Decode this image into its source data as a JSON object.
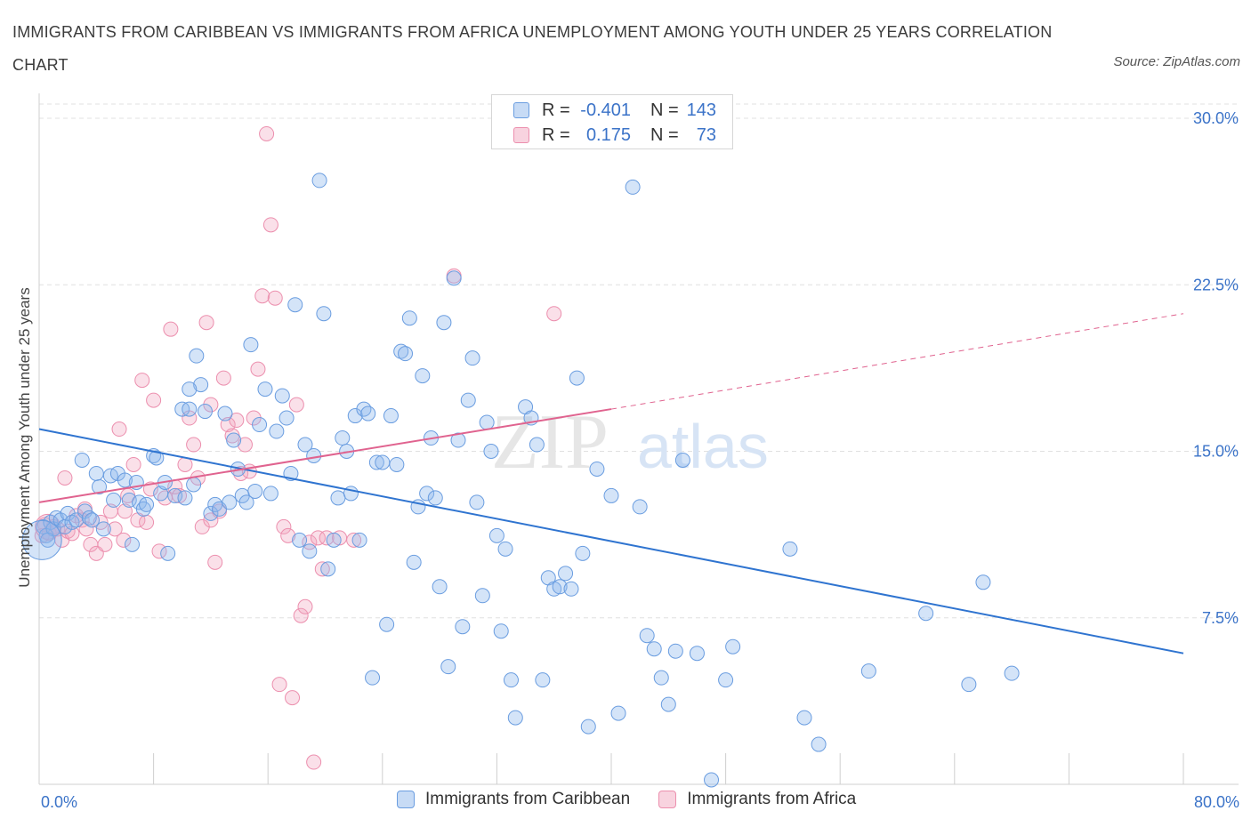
{
  "title": "IMMIGRANTS FROM CARIBBEAN VS IMMIGRANTS FROM AFRICA UNEMPLOYMENT AMONG YOUTH UNDER 25 YEARS CORRELATION CHART",
  "source": "Source: ZipAtlas.com",
  "watermark": {
    "zip": "ZIP",
    "atlas": "atlas"
  },
  "legend_top": {
    "rows": [
      {
        "r_label": "R =",
        "r_value": "-0.401",
        "n_label": "N =",
        "n_value": "143",
        "color": "#8fb8ec"
      },
      {
        "r_label": "R =",
        "r_value": "0.175",
        "n_label": "N =",
        "n_value": "73",
        "color": "#f2a7c0"
      }
    ]
  },
  "legend_bottom": [
    {
      "label": "Immigrants from Caribbean",
      "color": "#8fb8ec"
    },
    {
      "label": "Immigrants from Africa",
      "color": "#f2a7c0"
    }
  ],
  "colors": {
    "caribbean_fill": "rgba(143,184,236,0.38)",
    "caribbean_stroke": "#6a9de0",
    "africa_fill": "rgba(242,167,192,0.35)",
    "africa_stroke": "#ec8fae",
    "caribbean_line": "#2f74d0",
    "africa_line": "#e0638f",
    "tick_text": "#3b73c8",
    "grid": "#e0e0e0"
  },
  "chart_data": {
    "type": "scatter",
    "title": "IMMIGRANTS FROM CARIBBEAN VS IMMIGRANTS FROM AFRICA UNEMPLOYMENT AMONG YOUTH UNDER 25 YEARS CORRELATION CHART",
    "xlabel": "",
    "ylabel": "Unemployment Among Youth under 25 years",
    "xlim": [
      0,
      80
    ],
    "ylim": [
      0,
      30
    ],
    "x_tick_labels": [
      {
        "value": 0,
        "label": "0.0%"
      },
      {
        "value": 80,
        "label": "80.0%"
      }
    ],
    "y_tick_labels": [
      {
        "value": 7.5,
        "label": "7.5%"
      },
      {
        "value": 15,
        "label": "15.0%"
      },
      {
        "value": 22.5,
        "label": "22.5%"
      },
      {
        "value": 30,
        "label": "30.0%"
      }
    ],
    "series": [
      {
        "name": "Immigrants from Caribbean",
        "r": -0.401,
        "n": 143,
        "trend": {
          "x": [
            0,
            80
          ],
          "y": [
            16.0,
            5.9
          ]
        },
        "points": [
          [
            0.3,
            11.6
          ],
          [
            0.5,
            11.2
          ],
          [
            0.8,
            11.8
          ],
          [
            1.0,
            11.5
          ],
          [
            1.2,
            12.0
          ],
          [
            1.5,
            11.9
          ],
          [
            1.8,
            11.6
          ],
          [
            2.0,
            12.2
          ],
          [
            2.3,
            11.8
          ],
          [
            2.6,
            11.9
          ],
          [
            3.0,
            14.6
          ],
          [
            3.2,
            12.3
          ],
          [
            3.5,
            12.0
          ],
          [
            3.7,
            11.9
          ],
          [
            4.0,
            14.0
          ],
          [
            4.2,
            13.4
          ],
          [
            4.5,
            11.5
          ],
          [
            5.0,
            13.9
          ],
          [
            5.2,
            12.8
          ],
          [
            5.5,
            14.0
          ],
          [
            6.0,
            13.7
          ],
          [
            6.3,
            12.8
          ],
          [
            6.8,
            13.6
          ],
          [
            7.0,
            12.7
          ],
          [
            7.3,
            12.4
          ],
          [
            7.5,
            12.6
          ],
          [
            8.0,
            14.8
          ],
          [
            8.2,
            14.7
          ],
          [
            8.5,
            13.1
          ],
          [
            8.8,
            13.6
          ],
          [
            9.0,
            10.4
          ],
          [
            9.5,
            13.0
          ],
          [
            10.0,
            16.9
          ],
          [
            10.2,
            12.9
          ],
          [
            10.5,
            16.9
          ],
          [
            10.8,
            13.5
          ],
          [
            11.0,
            19.3
          ],
          [
            11.3,
            18.0
          ],
          [
            11.6,
            16.8
          ],
          [
            12.0,
            12.2
          ],
          [
            12.3,
            12.6
          ],
          [
            12.6,
            12.4
          ],
          [
            13.0,
            16.7
          ],
          [
            13.3,
            12.7
          ],
          [
            13.6,
            15.5
          ],
          [
            13.9,
            14.2
          ],
          [
            14.2,
            13.0
          ],
          [
            14.5,
            12.7
          ],
          [
            14.8,
            19.8
          ],
          [
            15.1,
            13.2
          ],
          [
            15.4,
            16.2
          ],
          [
            15.8,
            17.8
          ],
          [
            16.2,
            13.1
          ],
          [
            16.6,
            15.9
          ],
          [
            17.0,
            17.5
          ],
          [
            17.3,
            16.5
          ],
          [
            17.6,
            14.0
          ],
          [
            17.9,
            21.6
          ],
          [
            18.2,
            11.0
          ],
          [
            18.6,
            15.3
          ],
          [
            18.9,
            10.5
          ],
          [
            19.2,
            14.8
          ],
          [
            19.6,
            27.2
          ],
          [
            19.9,
            21.2
          ],
          [
            20.2,
            9.7
          ],
          [
            20.6,
            11.0
          ],
          [
            20.9,
            12.9
          ],
          [
            21.2,
            15.6
          ],
          [
            21.5,
            15.0
          ],
          [
            21.8,
            13.1
          ],
          [
            22.1,
            16.6
          ],
          [
            22.4,
            11.0
          ],
          [
            22.7,
            16.9
          ],
          [
            23.0,
            16.7
          ],
          [
            23.3,
            4.8
          ],
          [
            23.6,
            14.5
          ],
          [
            24.0,
            14.5
          ],
          [
            24.3,
            7.2
          ],
          [
            24.6,
            16.6
          ],
          [
            25.0,
            14.4
          ],
          [
            25.3,
            19.5
          ],
          [
            25.6,
            19.4
          ],
          [
            25.9,
            21.0
          ],
          [
            26.2,
            10.0
          ],
          [
            26.5,
            12.5
          ],
          [
            26.8,
            18.4
          ],
          [
            27.1,
            13.1
          ],
          [
            27.4,
            15.6
          ],
          [
            27.7,
            12.9
          ],
          [
            28.0,
            8.9
          ],
          [
            28.3,
            20.8
          ],
          [
            28.6,
            5.3
          ],
          [
            29.0,
            22.8
          ],
          [
            29.3,
            15.5
          ],
          [
            29.6,
            7.1
          ],
          [
            30.0,
            17.3
          ],
          [
            30.3,
            19.2
          ],
          [
            30.6,
            12.7
          ],
          [
            31.0,
            8.5
          ],
          [
            31.3,
            16.3
          ],
          [
            31.6,
            15.0
          ],
          [
            32.0,
            11.2
          ],
          [
            32.3,
            6.9
          ],
          [
            32.6,
            10.6
          ],
          [
            33.0,
            4.7
          ],
          [
            33.3,
            3.0
          ],
          [
            34.0,
            17.0
          ],
          [
            34.4,
            16.5
          ],
          [
            34.8,
            15.3
          ],
          [
            35.2,
            4.7
          ],
          [
            35.6,
            9.3
          ],
          [
            36.0,
            8.8
          ],
          [
            36.4,
            8.9
          ],
          [
            36.8,
            9.5
          ],
          [
            37.2,
            8.8
          ],
          [
            37.6,
            18.3
          ],
          [
            38.0,
            10.4
          ],
          [
            38.4,
            2.6
          ],
          [
            39.0,
            14.2
          ],
          [
            40.0,
            13.0
          ],
          [
            40.5,
            3.2
          ],
          [
            41.5,
            26.9
          ],
          [
            42.0,
            12.5
          ],
          [
            42.5,
            6.7
          ],
          [
            43.0,
            6.1
          ],
          [
            43.5,
            4.8
          ],
          [
            44.0,
            3.6
          ],
          [
            44.5,
            6.0
          ],
          [
            45.0,
            14.6
          ],
          [
            46.0,
            5.9
          ],
          [
            48.0,
            4.7
          ],
          [
            48.5,
            6.2
          ],
          [
            52.5,
            10.6
          ],
          [
            53.5,
            3.0
          ],
          [
            54.5,
            1.8
          ],
          [
            58.0,
            5.1
          ],
          [
            62.0,
            7.7
          ],
          [
            65.0,
            4.5
          ],
          [
            66.0,
            9.1
          ],
          [
            68.0,
            5.0
          ],
          [
            10.5,
            17.8
          ],
          [
            0.6,
            11.0
          ],
          [
            6.5,
            10.8
          ],
          [
            47.0,
            0.2
          ]
        ]
      },
      {
        "name": "Immigrants from Africa",
        "r": 0.175,
        "n": 73,
        "trend": {
          "x": [
            0,
            40
          ],
          "y": [
            12.7,
            16.9
          ],
          "dashed_extension": {
            "x": [
              40,
              80
            ],
            "y": [
              16.9,
              21.2
            ]
          }
        },
        "points": [
          [
            0.2,
            11.2
          ],
          [
            0.4,
            11.7
          ],
          [
            0.7,
            11.3
          ],
          [
            1.0,
            11.6
          ],
          [
            1.3,
            11.5
          ],
          [
            1.6,
            11.0
          ],
          [
            1.8,
            13.8
          ],
          [
            2.0,
            11.4
          ],
          [
            2.3,
            11.3
          ],
          [
            2.6,
            12.1
          ],
          [
            3.0,
            11.9
          ],
          [
            3.3,
            11.5
          ],
          [
            3.6,
            10.8
          ],
          [
            4.0,
            10.4
          ],
          [
            4.3,
            11.8
          ],
          [
            4.6,
            10.8
          ],
          [
            5.0,
            12.3
          ],
          [
            5.3,
            11.5
          ],
          [
            5.6,
            16.0
          ],
          [
            5.9,
            11.0
          ],
          [
            6.2,
            13.0
          ],
          [
            6.6,
            14.4
          ],
          [
            6.9,
            11.9
          ],
          [
            7.2,
            18.2
          ],
          [
            7.5,
            11.8
          ],
          [
            7.8,
            13.3
          ],
          [
            8.0,
            17.3
          ],
          [
            8.4,
            10.5
          ],
          [
            8.8,
            12.9
          ],
          [
            9.2,
            20.5
          ],
          [
            9.5,
            13.4
          ],
          [
            9.8,
            13.0
          ],
          [
            10.2,
            14.4
          ],
          [
            10.5,
            16.5
          ],
          [
            10.8,
            15.3
          ],
          [
            11.1,
            13.8
          ],
          [
            11.4,
            11.6
          ],
          [
            11.7,
            20.8
          ],
          [
            12.0,
            17.1
          ],
          [
            12.3,
            10.0
          ],
          [
            12.6,
            12.3
          ],
          [
            12.9,
            18.3
          ],
          [
            13.2,
            16.2
          ],
          [
            13.5,
            15.7
          ],
          [
            13.8,
            16.4
          ],
          [
            14.1,
            14.0
          ],
          [
            14.4,
            15.3
          ],
          [
            14.7,
            14.1
          ],
          [
            15.0,
            16.5
          ],
          [
            15.3,
            18.7
          ],
          [
            15.6,
            22.0
          ],
          [
            15.9,
            29.3
          ],
          [
            16.2,
            25.2
          ],
          [
            16.5,
            21.9
          ],
          [
            16.8,
            4.5
          ],
          [
            17.1,
            11.6
          ],
          [
            17.4,
            11.2
          ],
          [
            17.7,
            3.9
          ],
          [
            18.0,
            17.1
          ],
          [
            18.3,
            7.6
          ],
          [
            18.6,
            8.0
          ],
          [
            18.9,
            10.9
          ],
          [
            19.2,
            1.0
          ],
          [
            19.5,
            11.1
          ],
          [
            19.8,
            9.7
          ],
          [
            20.1,
            11.1
          ],
          [
            21.0,
            11.1
          ],
          [
            22.0,
            11.0
          ],
          [
            29.0,
            22.9
          ],
          [
            36.0,
            21.2
          ],
          [
            12.0,
            11.9
          ],
          [
            6.0,
            12.3
          ],
          [
            3.2,
            12.4
          ]
        ]
      }
    ]
  }
}
